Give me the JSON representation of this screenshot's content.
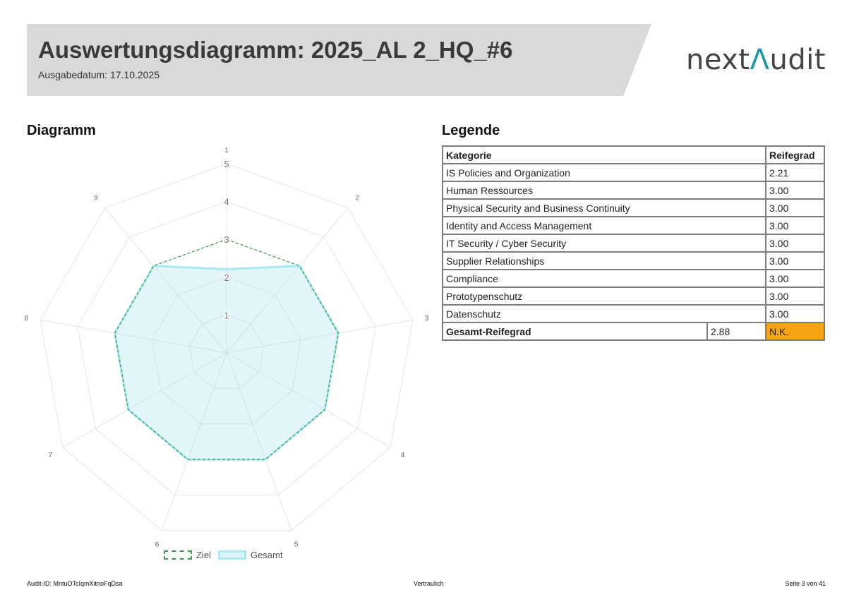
{
  "header": {
    "title": "Auswertungsdiagramm: 2025_AL 2_HQ_#6",
    "issue_date": "Ausgabedatum: 17.10.2025",
    "logo_part1": "next",
    "logo_accent": "Λ",
    "logo_part2": "udit",
    "band_color": "#d9d9d9"
  },
  "sections": {
    "chart_title": "Diagramm",
    "legend_title": "Legende"
  },
  "chart_data": {
    "type": "radar",
    "axis_labels": [
      "1",
      "2",
      "3",
      "4",
      "5",
      "6",
      "7",
      "8",
      "9"
    ],
    "r_min": 0,
    "r_max": 5,
    "r_ticks": [
      "1",
      "2",
      "3",
      "4",
      "5"
    ],
    "grid": true,
    "legend_position": "bottom",
    "series": [
      {
        "name": "Ziel",
        "style": "dashed",
        "color": "#3a9a4a",
        "values": [
          3,
          3,
          3,
          3,
          3,
          3,
          3,
          3,
          3
        ]
      },
      {
        "name": "Gesamt",
        "style": "filled",
        "color": "#a9e8f2",
        "fill": "rgba(160,225,240,0.3)",
        "values": [
          2.21,
          3,
          3,
          3,
          3,
          3,
          3,
          3,
          3
        ]
      }
    ]
  },
  "legend_table": {
    "headers": [
      "Kategorie",
      "Reifegrad"
    ],
    "rows": [
      {
        "category": "IS Policies and Organization",
        "value": "2.21"
      },
      {
        "category": "Human Ressources",
        "value": "3.00"
      },
      {
        "category": "Physical Security and Business Continuity",
        "value": "3.00"
      },
      {
        "category": "Identity and Access Management",
        "value": "3.00"
      },
      {
        "category": "IT Security / Cyber Security",
        "value": "3.00"
      },
      {
        "category": "Supplier Relationships",
        "value": "3.00"
      },
      {
        "category": "Compliance",
        "value": "3.00"
      },
      {
        "category": "Prototypenschutz",
        "value": "3.00"
      },
      {
        "category": "Datenschutz",
        "value": "3.00"
      }
    ],
    "total_label": "Gesamt-Reifegrad",
    "total_value": "2.88",
    "total_status": "N.K.",
    "status_color": "#f6a410"
  },
  "footer": {
    "audit_id": "Audit-ID: MntuOTcIqmXitnoFqDsa",
    "confidentiality": "Vertraulich",
    "page": "Seite 3 von 41"
  }
}
